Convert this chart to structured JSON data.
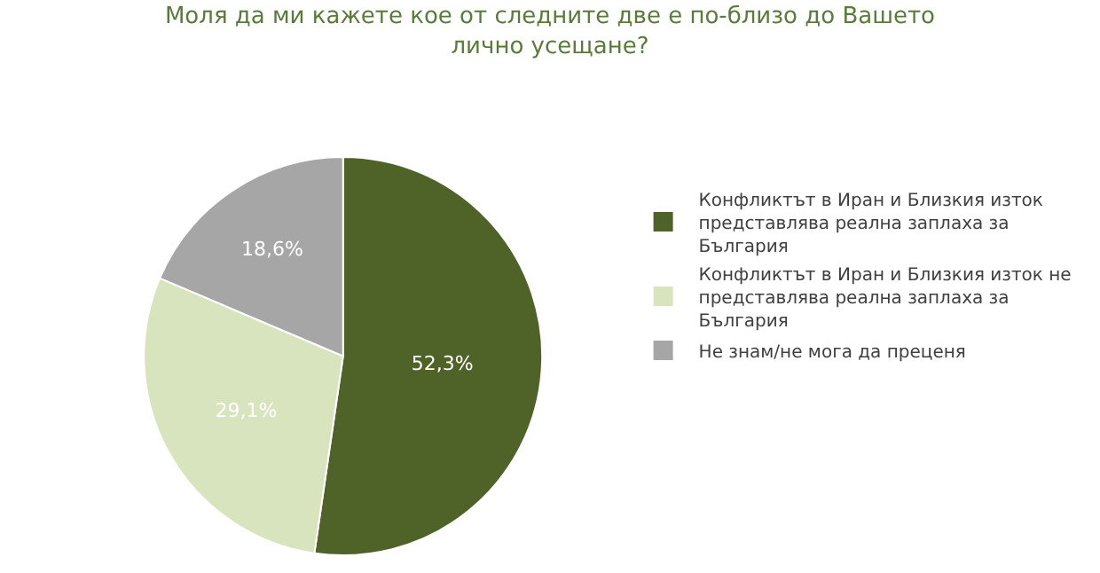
{
  "chart_data": {
    "type": "pie",
    "title": "Моля да ми кажете кое от следните две е по-близо до Вашето лично усещане?",
    "categories": [
      "Конфликтът в Иран и Близкия изток представлява реална заплаха за България",
      "Конфликтът в Иран и Близкия изток не представлява реална заплаха за България",
      "Не знам/не мога да преценя"
    ],
    "values": [
      52.3,
      29.1,
      18.6
    ],
    "value_labels": [
      "52,3%",
      "29,1%",
      "18,6%"
    ],
    "colors": [
      "#4f6228",
      "#d7e4bd",
      "#a6a6a6"
    ],
    "legend": "right"
  }
}
